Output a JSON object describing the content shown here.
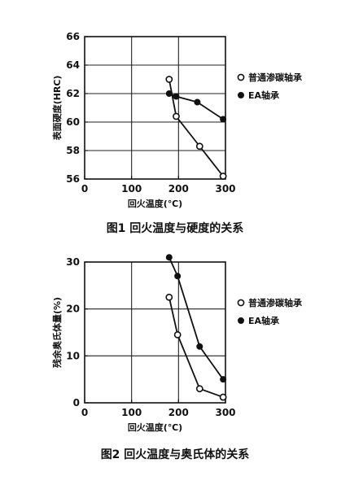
{
  "chart_data": [
    {
      "type": "line",
      "xlabel": "回火温度(℃)",
      "ylabel": "表面硬度(HRC)",
      "caption": "图1   回火温度与硬度的关系",
      "xlim": [
        0,
        300
      ],
      "ylim": [
        56,
        66
      ],
      "xticks": [
        "0",
        "100",
        "200",
        "300"
      ],
      "yticks": [
        "56",
        "58",
        "60",
        "62",
        "64",
        "66"
      ],
      "legend_position": "right",
      "grid": true,
      "series": [
        {
          "name": "普通渗碳轴承",
          "marker": "open-circle",
          "x": [
            180,
            195,
            245,
            295
          ],
          "y": [
            63.0,
            60.4,
            58.3,
            56.2
          ]
        },
        {
          "name": "EA轴承",
          "marker": "filled-circle",
          "x": [
            180,
            195,
            240,
            295
          ],
          "y": [
            62.0,
            61.8,
            61.4,
            60.2
          ]
        }
      ]
    },
    {
      "type": "line",
      "xlabel": "回火温度(℃)",
      "ylabel": "残余奥氏体量(%)",
      "caption": "图2   回火温度与奥氏体的关系",
      "xlim": [
        0,
        300
      ],
      "ylim": [
        0,
        30
      ],
      "xticks": [
        "0",
        "100",
        "200",
        "300"
      ],
      "yticks": [
        "0",
        "10",
        "20",
        "30"
      ],
      "legend_position": "right",
      "grid": true,
      "series": [
        {
          "name": "普通渗碳轴承",
          "marker": "open-circle",
          "x": [
            180,
            198,
            245,
            295
          ],
          "y": [
            22.5,
            14.5,
            3.0,
            1.2
          ]
        },
        {
          "name": "EA轴承",
          "marker": "filled-circle",
          "x": [
            180,
            198,
            245,
            295
          ],
          "y": [
            31.0,
            27.0,
            12.0,
            5.0
          ]
        }
      ]
    }
  ]
}
